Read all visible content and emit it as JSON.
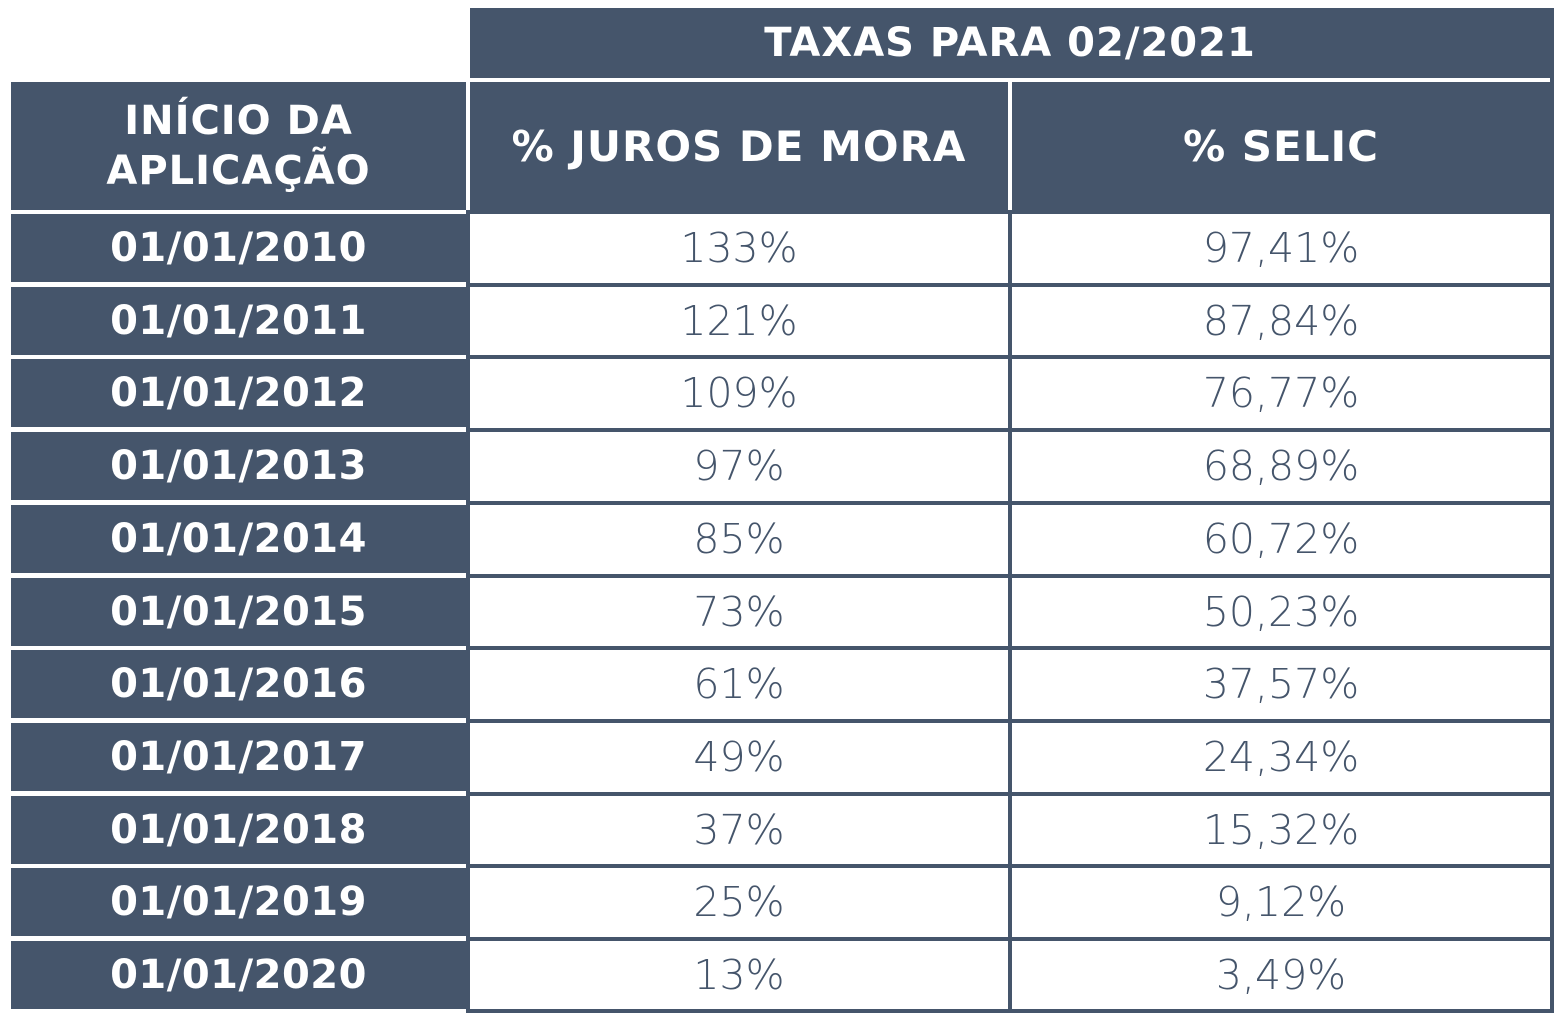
{
  "table": {
    "group_header": "TAXAS PARA 02/2021",
    "col_first_line1": "INÍCIO DA",
    "col_first_line2": "APLICAÇÃO",
    "col_juros": "% JUROS DE MORA",
    "col_selic": "% SELIC",
    "rows": [
      {
        "date": "01/01/2010",
        "juros": "133%",
        "selic": "97,41%"
      },
      {
        "date": "01/01/2011",
        "juros": "121%",
        "selic": "87,84%"
      },
      {
        "date": "01/01/2012",
        "juros": "109%",
        "selic": "76,77%"
      },
      {
        "date": "01/01/2013",
        "juros": "97%",
        "selic": "68,89%"
      },
      {
        "date": "01/01/2014",
        "juros": "85%",
        "selic": "60,72%"
      },
      {
        "date": "01/01/2015",
        "juros": "73%",
        "selic": "50,23%"
      },
      {
        "date": "01/01/2016",
        "juros": "61%",
        "selic": "37,57%"
      },
      {
        "date": "01/01/2017",
        "juros": "49%",
        "selic": "24,34%"
      },
      {
        "date": "01/01/2018",
        "juros": "37%",
        "selic": "15,32%"
      },
      {
        "date": "01/01/2019",
        "juros": "25%",
        "selic": "9,12%"
      },
      {
        "date": "01/01/2020",
        "juros": "13%",
        "selic": "3,49%"
      }
    ]
  },
  "colors": {
    "dark": "#45556b",
    "light": "#ffffff"
  }
}
